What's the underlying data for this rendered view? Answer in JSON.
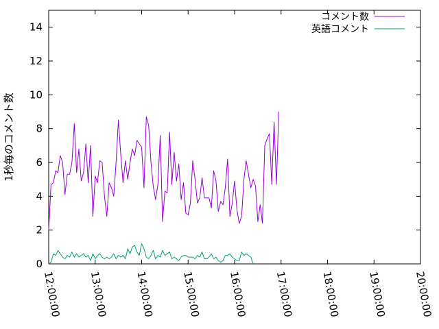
{
  "chart_data": {
    "type": "line",
    "title": "",
    "xlabel": "",
    "ylabel": "1秒毎のコメント数",
    "xlim": [
      "12:00:00",
      "20:00:00"
    ],
    "ylim": [
      0,
      15
    ],
    "x_ticks": [
      "12:00:00",
      "13:00:00",
      "14:00:00",
      "15:00:00",
      "16:00:00",
      "17:00:00",
      "18:00:00",
      "19:00:00",
      "20:00:00"
    ],
    "y_ticks": [
      0,
      2,
      4,
      6,
      8,
      10,
      12,
      14
    ],
    "legend_position": "top-right",
    "grid": false,
    "series": [
      {
        "name": "コメント数",
        "color": "#9400d3",
        "points": [
          [
            "12:00:00",
            2.0
          ],
          [
            "12:03:00",
            4.7
          ],
          [
            "12:06:00",
            4.8
          ],
          [
            "12:09:00",
            5.5
          ],
          [
            "12:12:00",
            5.4
          ],
          [
            "12:15:00",
            6.4
          ],
          [
            "12:18:00",
            6.0
          ],
          [
            "12:21:00",
            4.1
          ],
          [
            "12:24:00",
            5.3
          ],
          [
            "12:27:00",
            5.3
          ],
          [
            "12:30:00",
            6.0
          ],
          [
            "12:33:00",
            8.3
          ],
          [
            "12:36:00",
            5.4
          ],
          [
            "12:39:00",
            6.8
          ],
          [
            "12:42:00",
            4.9
          ],
          [
            "12:45:00",
            5.4
          ],
          [
            "12:48:00",
            7.1
          ],
          [
            "12:51:00",
            4.8
          ],
          [
            "12:54:00",
            7.0
          ],
          [
            "12:57:00",
            2.8
          ],
          [
            "13:00:00",
            5.2
          ],
          [
            "13:03:00",
            4.8
          ],
          [
            "13:06:00",
            6.1
          ],
          [
            "13:09:00",
            6.0
          ],
          [
            "13:12:00",
            4.0
          ],
          [
            "13:15:00",
            2.8
          ],
          [
            "13:18:00",
            4.8
          ],
          [
            "13:21:00",
            4.5
          ],
          [
            "13:24:00",
            4.0
          ],
          [
            "13:27:00",
            6.0
          ],
          [
            "13:30:00",
            8.5
          ],
          [
            "13:33:00",
            6.5
          ],
          [
            "13:36:00",
            4.8
          ],
          [
            "13:39:00",
            6.1
          ],
          [
            "13:42:00",
            5.0
          ],
          [
            "13:45:00",
            6.0
          ],
          [
            "13:48:00",
            6.8
          ],
          [
            "13:51:00",
            6.4
          ],
          [
            "13:54:00",
            7.3
          ],
          [
            "13:57:00",
            7.1
          ],
          [
            "14:00:00",
            6.9
          ],
          [
            "14:03:00",
            4.5
          ],
          [
            "14:06:00",
            8.7
          ],
          [
            "14:09:00",
            8.2
          ],
          [
            "14:12:00",
            6.0
          ],
          [
            "14:15:00",
            4.6
          ],
          [
            "14:18:00",
            3.8
          ],
          [
            "14:21:00",
            4.7
          ],
          [
            "14:24:00",
            7.6
          ],
          [
            "14:27:00",
            2.5
          ],
          [
            "14:30:00",
            4.3
          ],
          [
            "14:33:00",
            4.2
          ],
          [
            "14:36:00",
            7.8
          ],
          [
            "14:39:00",
            4.7
          ],
          [
            "14:42:00",
            6.6
          ],
          [
            "14:45:00",
            4.9
          ],
          [
            "14:48:00",
            5.9
          ],
          [
            "14:51:00",
            3.8
          ],
          [
            "14:54:00",
            4.8
          ],
          [
            "14:57:00",
            3.0
          ],
          [
            "15:00:00",
            2.9
          ],
          [
            "15:03:00",
            3.6
          ],
          [
            "15:06:00",
            6.1
          ],
          [
            "15:09:00",
            5.0
          ],
          [
            "15:12:00",
            3.6
          ],
          [
            "15:15:00",
            3.9
          ],
          [
            "15:18:00",
            5.1
          ],
          [
            "15:21:00",
            3.9
          ],
          [
            "15:24:00",
            3.9
          ],
          [
            "15:27:00",
            3.9
          ],
          [
            "15:30:00",
            3.3
          ],
          [
            "15:33:00",
            5.5
          ],
          [
            "15:36:00",
            4.9
          ],
          [
            "15:39:00",
            3.1
          ],
          [
            "15:42:00",
            3.7
          ],
          [
            "15:45:00",
            3.5
          ],
          [
            "15:48:00",
            4.5
          ],
          [
            "15:51:00",
            6.2
          ],
          [
            "15:54:00",
            2.8
          ],
          [
            "15:57:00",
            3.6
          ],
          [
            "16:00:00",
            4.9
          ],
          [
            "16:03:00",
            3.2
          ],
          [
            "16:06:00",
            2.4
          ],
          [
            "16:09:00",
            2.8
          ],
          [
            "16:12:00",
            5.0
          ],
          [
            "16:15:00",
            6.1
          ],
          [
            "16:18:00",
            5.3
          ],
          [
            "16:21:00",
            4.5
          ],
          [
            "16:24:00",
            5.0
          ],
          [
            "16:27:00",
            4.6
          ],
          [
            "16:30:00",
            2.5
          ],
          [
            "16:33:00",
            3.5
          ],
          [
            "16:36:00",
            2.4
          ],
          [
            "16:39:00",
            7.0
          ],
          [
            "16:42:00",
            7.4
          ],
          [
            "16:45:00",
            7.7
          ],
          [
            "16:48:00",
            4.7
          ],
          [
            "16:51:00",
            8.4
          ],
          [
            "16:54:00",
            4.7
          ],
          [
            "16:57:00",
            9.0
          ]
        ]
      },
      {
        "name": "英語コメント",
        "color": "#009e73",
        "points": [
          [
            "12:00:00",
            0.0
          ],
          [
            "12:03:00",
            0.1
          ],
          [
            "12:06:00",
            0.6
          ],
          [
            "12:09:00",
            0.5
          ],
          [
            "12:12:00",
            0.8
          ],
          [
            "12:15:00",
            0.6
          ],
          [
            "12:18:00",
            0.4
          ],
          [
            "12:21:00",
            0.3
          ],
          [
            "12:24:00",
            0.5
          ],
          [
            "12:27:00",
            0.4
          ],
          [
            "12:30:00",
            0.7
          ],
          [
            "12:33:00",
            0.4
          ],
          [
            "12:36:00",
            0.6
          ],
          [
            "12:39:00",
            0.4
          ],
          [
            "12:42:00",
            0.5
          ],
          [
            "12:45:00",
            0.6
          ],
          [
            "12:48:00",
            0.4
          ],
          [
            "12:51:00",
            0.5
          ],
          [
            "12:54:00",
            0.2
          ],
          [
            "12:57:00",
            0.6
          ],
          [
            "13:00:00",
            0.3
          ],
          [
            "13:03:00",
            0.5
          ],
          [
            "13:06:00",
            0.6
          ],
          [
            "13:09:00",
            0.4
          ],
          [
            "13:12:00",
            0.3
          ],
          [
            "13:15:00",
            0.4
          ],
          [
            "13:18:00",
            0.3
          ],
          [
            "13:21:00",
            0.4
          ],
          [
            "13:24:00",
            0.6
          ],
          [
            "13:27:00",
            0.3
          ],
          [
            "13:30:00",
            0.5
          ],
          [
            "13:33:00",
            0.4
          ],
          [
            "13:36:00",
            0.5
          ],
          [
            "13:39:00",
            0.3
          ],
          [
            "13:42:00",
            0.9
          ],
          [
            "13:45:00",
            0.6
          ],
          [
            "13:48:00",
            1.0
          ],
          [
            "13:51:00",
            1.1
          ],
          [
            "13:54:00",
            0.7
          ],
          [
            "13:57:00",
            0.5
          ],
          [
            "14:00:00",
            1.2
          ],
          [
            "14:03:00",
            0.9
          ],
          [
            "14:06:00",
            0.4
          ],
          [
            "14:09:00",
            0.3
          ],
          [
            "14:12:00",
            0.5
          ],
          [
            "14:15:00",
            0.8
          ],
          [
            "14:18:00",
            0.3
          ],
          [
            "14:21:00",
            0.5
          ],
          [
            "14:24:00",
            0.4
          ],
          [
            "14:27:00",
            0.8
          ],
          [
            "14:30:00",
            0.5
          ],
          [
            "14:33:00",
            0.6
          ],
          [
            "14:36:00",
            0.7
          ],
          [
            "14:39:00",
            0.3
          ],
          [
            "14:42:00",
            0.4
          ],
          [
            "14:45:00",
            0.3
          ],
          [
            "14:48:00",
            0.2
          ],
          [
            "14:51:00",
            0.4
          ],
          [
            "14:54:00",
            0.5
          ],
          [
            "14:57:00",
            0.5
          ],
          [
            "15:00:00",
            0.4
          ],
          [
            "15:03:00",
            0.4
          ],
          [
            "15:06:00",
            0.4
          ],
          [
            "15:09:00",
            0.3
          ],
          [
            "15:12:00",
            0.5
          ],
          [
            "15:15:00",
            0.4
          ],
          [
            "15:18:00",
            0.7
          ],
          [
            "15:21:00",
            0.3
          ],
          [
            "15:24:00",
            0.3
          ],
          [
            "15:27:00",
            0.4
          ],
          [
            "15:30:00",
            0.6
          ],
          [
            "15:33:00",
            0.3
          ],
          [
            "15:36:00",
            0.4
          ],
          [
            "15:39:00",
            0.2
          ],
          [
            "15:42:00",
            0.1
          ],
          [
            "15:45:00",
            0.2
          ],
          [
            "15:48:00",
            0.5
          ],
          [
            "15:51:00",
            0.5
          ],
          [
            "15:54:00",
            0.6
          ],
          [
            "15:57:00",
            0.4
          ],
          [
            "16:00:00",
            0.3
          ],
          [
            "16:03:00",
            0.2
          ],
          [
            "16:06:00",
            0.2
          ],
          [
            "16:09:00",
            0.7
          ],
          [
            "16:12:00",
            0.5
          ],
          [
            "16:15:00",
            0.6
          ],
          [
            "16:18:00",
            0.5
          ],
          [
            "16:21:00",
            0.4
          ],
          [
            "16:24:00",
            0.0
          ]
        ]
      }
    ]
  }
}
